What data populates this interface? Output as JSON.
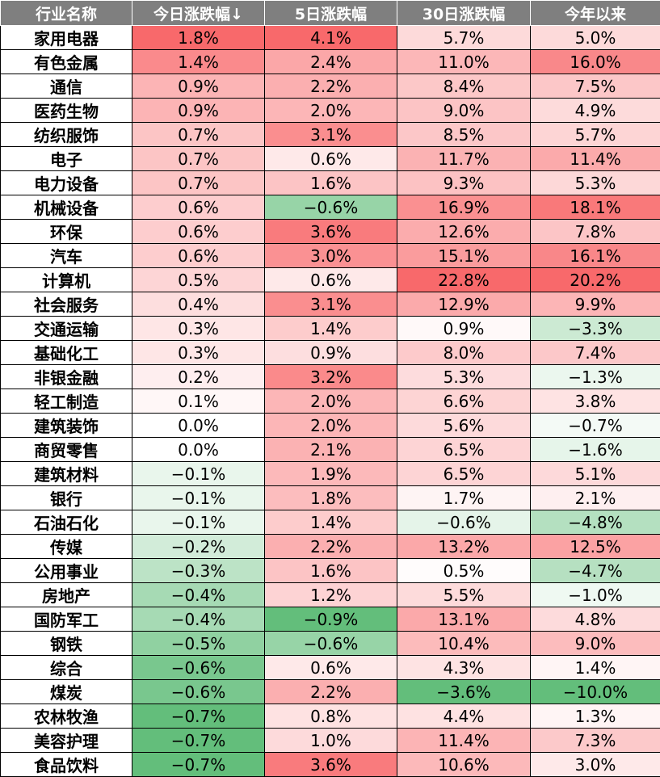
{
  "table": {
    "headers": [
      "行业名称",
      "今日涨跌幅↓",
      "5日涨跌幅",
      "30日涨跌幅",
      "今年以来"
    ],
    "rows": [
      {
        "industry": "家用电器",
        "today": "1.8%",
        "d5": "4.1%",
        "d30": "5.7%",
        "ytd": "5.0%"
      },
      {
        "industry": "有色金属",
        "today": "1.4%",
        "d5": "2.4%",
        "d30": "11.0%",
        "ytd": "16.0%"
      },
      {
        "industry": "通信",
        "today": "0.9%",
        "d5": "2.2%",
        "d30": "8.4%",
        "ytd": "7.5%"
      },
      {
        "industry": "医药生物",
        "today": "0.9%",
        "d5": "2.0%",
        "d30": "9.0%",
        "ytd": "4.9%"
      },
      {
        "industry": "纺织服饰",
        "today": "0.7%",
        "d5": "3.1%",
        "d30": "8.5%",
        "ytd": "5.7%"
      },
      {
        "industry": "电子",
        "today": "0.7%",
        "d5": "0.6%",
        "d30": "11.7%",
        "ytd": "11.4%"
      },
      {
        "industry": "电力设备",
        "today": "0.7%",
        "d5": "1.6%",
        "d30": "9.3%",
        "ytd": "5.3%"
      },
      {
        "industry": "机械设备",
        "today": "0.6%",
        "d5": "−0.6%",
        "d30": "16.9%",
        "ytd": "18.1%"
      },
      {
        "industry": "环保",
        "today": "0.6%",
        "d5": "3.6%",
        "d30": "12.6%",
        "ytd": "7.8%"
      },
      {
        "industry": "汽车",
        "today": "0.6%",
        "d5": "3.0%",
        "d30": "15.1%",
        "ytd": "16.1%"
      },
      {
        "industry": "计算机",
        "today": "0.5%",
        "d5": "0.6%",
        "d30": "22.8%",
        "ytd": "20.2%"
      },
      {
        "industry": "社会服务",
        "today": "0.4%",
        "d5": "3.1%",
        "d30": "12.9%",
        "ytd": "9.9%"
      },
      {
        "industry": "交通运输",
        "today": "0.3%",
        "d5": "1.4%",
        "d30": "0.9%",
        "ytd": "−3.3%"
      },
      {
        "industry": "基础化工",
        "today": "0.3%",
        "d5": "0.9%",
        "d30": "8.0%",
        "ytd": "7.4%"
      },
      {
        "industry": "非银金融",
        "today": "0.2%",
        "d5": "3.2%",
        "d30": "5.3%",
        "ytd": "−1.3%"
      },
      {
        "industry": "轻工制造",
        "today": "0.1%",
        "d5": "2.0%",
        "d30": "6.6%",
        "ytd": "3.8%"
      },
      {
        "industry": "建筑装饰",
        "today": "0.0%",
        "d5": "2.0%",
        "d30": "5.6%",
        "ytd": "−0.7%"
      },
      {
        "industry": "商贸零售",
        "today": "0.0%",
        "d5": "2.1%",
        "d30": "6.5%",
        "ytd": "−1.6%"
      },
      {
        "industry": "建筑材料",
        "today": "−0.1%",
        "d5": "1.9%",
        "d30": "6.5%",
        "ytd": "5.1%"
      },
      {
        "industry": "银行",
        "today": "−0.1%",
        "d5": "1.8%",
        "d30": "1.7%",
        "ytd": "2.1%"
      },
      {
        "industry": "石油石化",
        "today": "−0.1%",
        "d5": "1.4%",
        "d30": "−0.6%",
        "ytd": "−4.8%"
      },
      {
        "industry": "传媒",
        "today": "−0.2%",
        "d5": "2.2%",
        "d30": "13.2%",
        "ytd": "12.5%"
      },
      {
        "industry": "公用事业",
        "today": "−0.3%",
        "d5": "1.6%",
        "d30": "0.5%",
        "ytd": "−4.7%"
      },
      {
        "industry": "房地产",
        "today": "−0.4%",
        "d5": "1.2%",
        "d30": "5.5%",
        "ytd": "−1.0%"
      },
      {
        "industry": "国防军工",
        "today": "−0.4%",
        "d5": "−0.9%",
        "d30": "13.1%",
        "ytd": "4.8%"
      },
      {
        "industry": "钢铁",
        "today": "−0.5%",
        "d5": "−0.6%",
        "d30": "10.4%",
        "ytd": "9.0%"
      },
      {
        "industry": "综合",
        "today": "−0.6%",
        "d5": "0.6%",
        "d30": "4.3%",
        "ytd": "1.4%"
      },
      {
        "industry": "煤炭",
        "today": "−0.6%",
        "d5": "2.2%",
        "d30": "−3.6%",
        "ytd": "−10.0%"
      },
      {
        "industry": "农林牧渔",
        "today": "−0.7%",
        "d5": "0.8%",
        "d30": "4.4%",
        "ytd": "1.3%"
      },
      {
        "industry": "美容护理",
        "today": "−0.7%",
        "d5": "1.0%",
        "d30": "11.4%",
        "ytd": "7.3%"
      },
      {
        "industry": "食品饮料",
        "today": "−0.7%",
        "d5": "3.6%",
        "d30": "10.6%",
        "ytd": "3.0%"
      }
    ]
  },
  "colors": {
    "header_bg": "#7f7f7f",
    "header_text": "#ffffff",
    "positive_max": "#f8696b",
    "negative_max": "#63be7b",
    "neutral": "#ffffff"
  }
}
